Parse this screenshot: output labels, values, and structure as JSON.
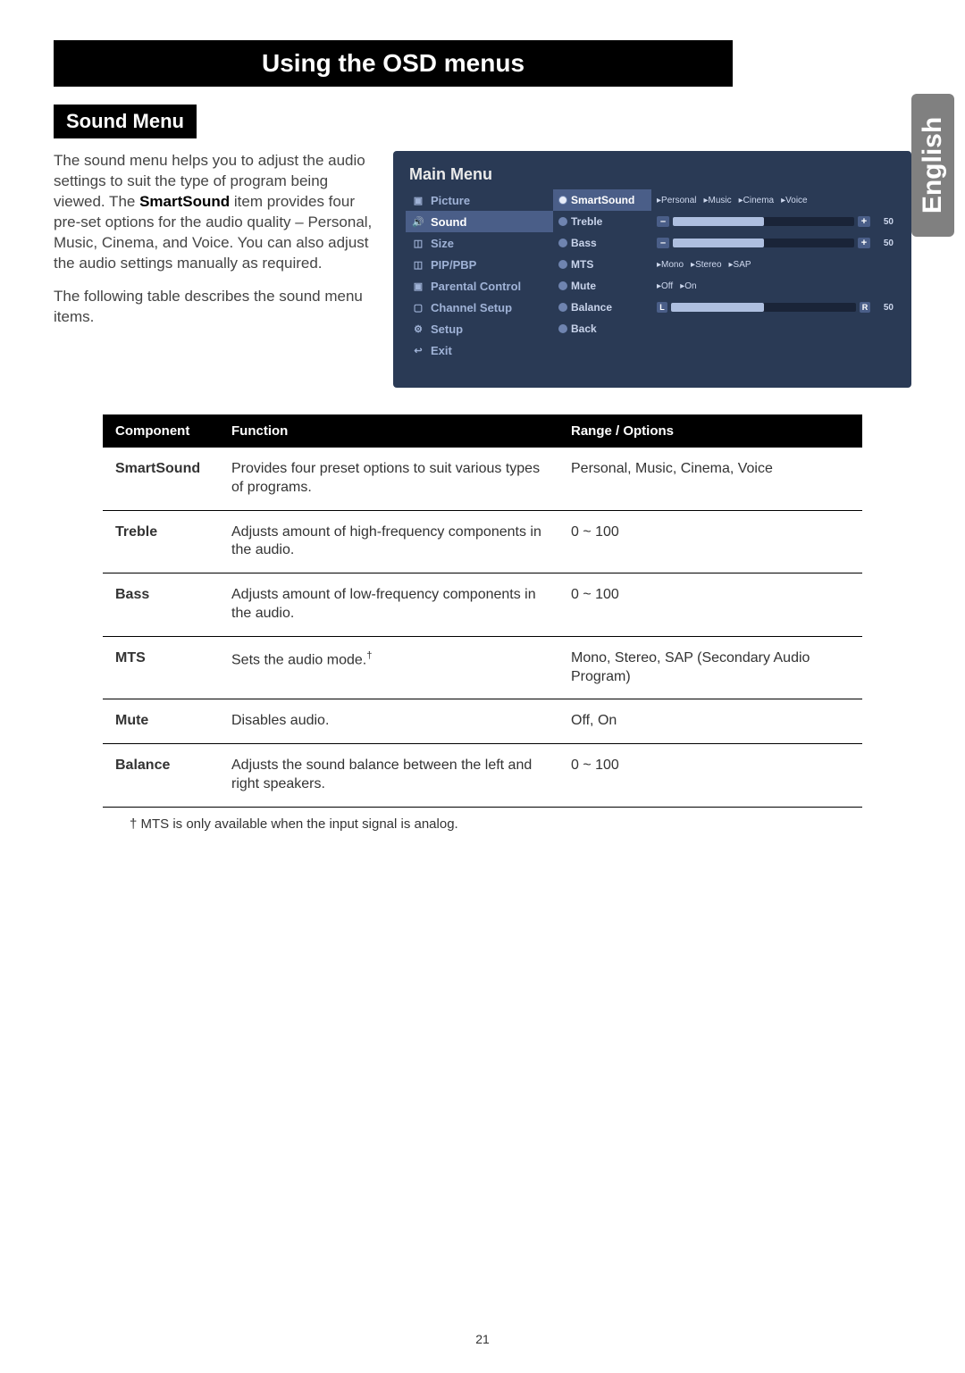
{
  "title_banner": "Using the OSD menus",
  "side_tab": "English",
  "section_label": "Sound Menu",
  "intro_p1_pre": "The sound menu helps you to adjust the audio settings to suit the type of program being viewed. The ",
  "intro_p1_bold": "SmartSound",
  "intro_p1_post": " item provides four pre-set options for the audio quality – Personal, Music, Cinema, and Voice. You can also adjust the audio settings manually as required.",
  "intro_p2": "The following table describes the sound menu items.",
  "osd": {
    "title": "Main Menu",
    "left_items": [
      {
        "icon": "▣",
        "label": "Picture",
        "active": false
      },
      {
        "icon": "🔊",
        "label": "Sound",
        "active": true
      },
      {
        "icon": "◫",
        "label": "Size",
        "active": false
      },
      {
        "icon": "◫",
        "label": "PIP/PBP",
        "active": false
      },
      {
        "icon": "▣",
        "label": "Parental Control",
        "active": false
      },
      {
        "icon": "▢",
        "label": "Channel Setup",
        "active": false
      },
      {
        "icon": "⚙",
        "label": "Setup",
        "active": false
      },
      {
        "icon": "↩",
        "label": "Exit",
        "active": false
      }
    ],
    "mid_items": [
      {
        "label": "SmartSound",
        "highlight": true,
        "sel": true
      },
      {
        "label": "Treble",
        "highlight": false,
        "sel": false
      },
      {
        "label": "Bass",
        "highlight": false,
        "sel": false
      },
      {
        "label": "MTS",
        "highlight": false,
        "sel": false
      },
      {
        "label": "Mute",
        "highlight": false,
        "sel": false
      },
      {
        "label": "Balance",
        "highlight": false,
        "sel": false
      },
      {
        "label": "Back",
        "highlight": false,
        "sel": false
      }
    ],
    "smartsound_opts": [
      "▸Personal",
      "▸Music",
      "▸Cinema",
      "▸Voice"
    ],
    "treble_value": 50,
    "treble_fill": 50,
    "bass_value": 50,
    "bass_fill": 50,
    "mts_opts": [
      "▸Mono",
      "▸Stereo",
      "▸SAP"
    ],
    "mute_opts": [
      "▸Off",
      "▸On"
    ],
    "balance_value": 50,
    "balance_fill": 50,
    "balance_left_lbl": "L",
    "balance_right_lbl": "R",
    "minus": "–",
    "plus": "+"
  },
  "table": {
    "headers": [
      "Component",
      "Function",
      "Range / Options"
    ],
    "rows": [
      {
        "c": "SmartSound",
        "f": "Provides four preset options to suit various types of programs.",
        "r": "Personal, Music, Cinema, Voice"
      },
      {
        "c": "Treble",
        "f": "Adjusts amount of high-frequency components in the audio.",
        "r": "0 ~ 100"
      },
      {
        "c": "Bass",
        "f": "Adjusts amount of low-frequency components in the audio.",
        "r": "0 ~ 100"
      },
      {
        "c": "MTS",
        "f": "Sets the audio mode.",
        "sup": "†",
        "r": "Mono, Stereo, SAP (Secondary Audio Program)"
      },
      {
        "c": "Mute",
        "f": "Disables audio.",
        "r": "Off, On"
      },
      {
        "c": "Balance",
        "f": "Adjusts the sound balance between the left and right speakers.",
        "r": "0 ~ 100"
      }
    ]
  },
  "footnote": "† MTS is only available when the input signal is analog.",
  "page_number": "21"
}
